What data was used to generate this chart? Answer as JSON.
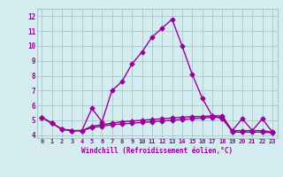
{
  "line1_x": [
    0,
    1,
    2,
    3,
    4,
    5,
    6,
    7,
    8,
    9,
    10,
    11,
    12,
    13,
    14,
    15,
    16,
    17,
    18,
    19,
    20,
    21,
    22,
    23
  ],
  "line1_y": [
    5.2,
    4.8,
    4.4,
    4.3,
    4.3,
    5.8,
    4.9,
    7.0,
    7.6,
    8.8,
    9.6,
    10.6,
    11.2,
    11.8,
    10.0,
    8.1,
    6.5,
    5.3,
    5.1,
    4.3,
    5.1,
    4.3,
    5.1,
    4.2
  ],
  "line2_x": [
    0,
    1,
    2,
    3,
    4,
    5,
    6,
    7,
    8,
    9,
    10,
    11,
    12,
    13,
    14,
    15,
    16,
    17,
    18,
    19,
    20,
    21,
    22,
    23
  ],
  "line2_y": [
    5.2,
    4.8,
    4.4,
    4.3,
    4.3,
    4.6,
    4.7,
    4.8,
    4.9,
    4.95,
    5.0,
    5.05,
    5.1,
    5.15,
    5.2,
    5.25,
    5.25,
    5.3,
    5.3,
    4.3,
    4.3,
    4.3,
    4.3,
    4.2
  ],
  "line3_x": [
    0,
    1,
    2,
    3,
    4,
    5,
    6,
    7,
    8,
    9,
    10,
    11,
    12,
    13,
    14,
    15,
    16,
    17,
    18,
    19,
    20,
    21,
    22,
    23
  ],
  "line3_y": [
    5.2,
    4.8,
    4.4,
    4.3,
    4.3,
    4.5,
    4.6,
    4.7,
    4.75,
    4.8,
    4.85,
    4.9,
    4.95,
    5.0,
    5.05,
    5.1,
    5.15,
    5.2,
    5.2,
    4.2,
    4.2,
    4.2,
    4.2,
    4.15
  ],
  "line_color": "#990099",
  "bg_color": "#d4ecf0",
  "grid_color": "#a8c8cc",
  "xlabel": "Windchill (Refroidissement éolien,°C)",
  "xlabel_color": "#990099",
  "ylim": [
    3.8,
    12.5
  ],
  "xlim": [
    -0.5,
    23.5
  ],
  "yticks": [
    4,
    5,
    6,
    7,
    8,
    9,
    10,
    11,
    12
  ],
  "xtick_labels": [
    "0",
    "1",
    "2",
    "3",
    "4",
    "5",
    "6",
    "7",
    "8",
    "9",
    "10",
    "11",
    "12",
    "13",
    "14",
    "15",
    "16",
    "17",
    "18",
    "19",
    "20",
    "21",
    "22",
    "23"
  ],
  "marker": "D",
  "markersize": 2.5,
  "linewidth": 1.0
}
